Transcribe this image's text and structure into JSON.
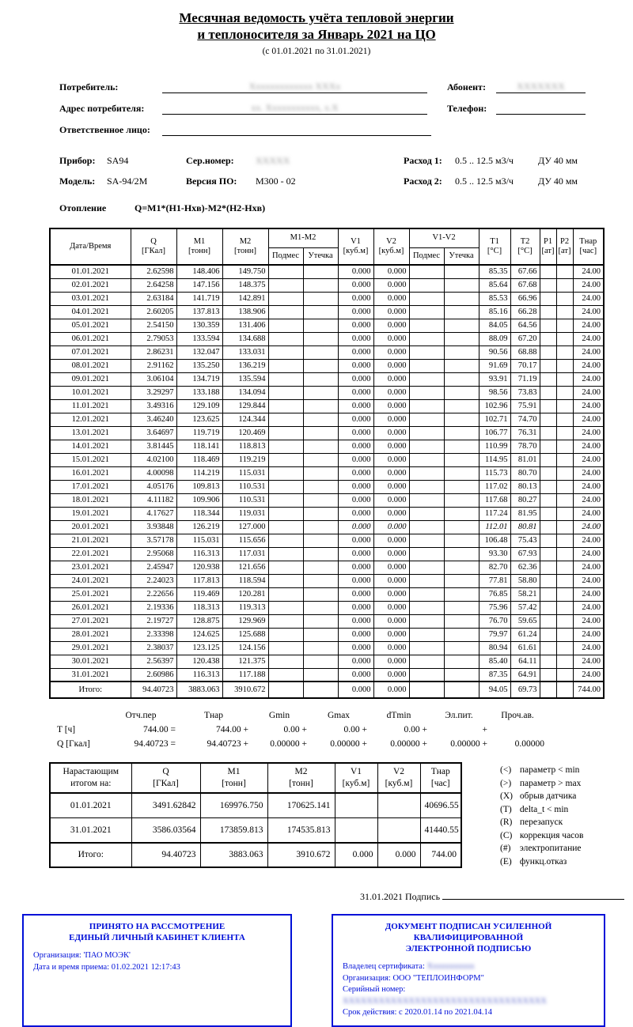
{
  "title": {
    "line1": "Месячная ведомость учёта тепловой энергии",
    "line2": "и теплоносителя за Январь 2021 на ЦО",
    "period": "(с 01.01.2021 по 31.01.2021)"
  },
  "consumer_form": {
    "consumer_label": "Потребитель:",
    "consumer_value_redacted": "Xxxxxxxxxxxxx XXXx",
    "abonent_label": "Абонент:",
    "abonent_value_redacted": "XXXXXXX",
    "address_label": "Адрес потребителя:",
    "address_value_redacted": "xx. Xxxxxxxxxxx, x.X",
    "phone_label": "Телефон:",
    "phone_value": "",
    "responsible_label": "Ответственное лицо:",
    "responsible_value": ""
  },
  "device": {
    "device_label": "Прибор:",
    "device_value": "SA94",
    "serial_label": "Сер.номер:",
    "serial_value_redacted": "XXXXX",
    "model_label": "Модель:",
    "model_value": "SA-94/2M",
    "firmware_label": "Версия ПО:",
    "firmware_value": "M300 - 02",
    "flow1_label": "Расход 1:",
    "flow1_value": "0.5 .. 12.5 м3/ч",
    "flow1_du": "ДУ 40 мм",
    "flow2_label": "Расход 2:",
    "flow2_value": "0.5 .. 12.5 м3/ч",
    "flow2_du": "ДУ 40 мм",
    "system_label": "Отопление",
    "formula": "Q=M1*(H1-Hхв)-M2*(H2-Hхв)"
  },
  "main_table": {
    "headers": {
      "date": "Дата/Время",
      "q": [
        "Q",
        "[ГКал]"
      ],
      "m1": [
        "M1",
        "[тонн]"
      ],
      "m2": [
        "M2",
        "[тонн]"
      ],
      "m1m2": "M1-M2",
      "v1": [
        "V1",
        "[куб.м]"
      ],
      "v2": [
        "V2",
        "[куб.м]"
      ],
      "v1v2": "V1-V2",
      "t1": [
        "T1",
        "[°C]"
      ],
      "t2": [
        "T2",
        "[°C]"
      ],
      "p1": [
        "P1",
        "[ат]"
      ],
      "p2": [
        "P2",
        "[ат]"
      ],
      "tnar": [
        "Тнар",
        "[час]"
      ],
      "podmes": "Подмес",
      "utechka": "Утечка"
    },
    "rows": [
      {
        "date": "01.01.2021",
        "q": "2.62598",
        "m1": "148.406",
        "m2": "149.750",
        "v1": "0.000",
        "v2": "0.000",
        "t1": "85.35",
        "t2": "67.66",
        "tnar": "24.00",
        "italic": false
      },
      {
        "date": "02.01.2021",
        "q": "2.64258",
        "m1": "147.156",
        "m2": "148.375",
        "v1": "0.000",
        "v2": "0.000",
        "t1": "85.64",
        "t2": "67.68",
        "tnar": "24.00",
        "italic": false
      },
      {
        "date": "03.01.2021",
        "q": "2.63184",
        "m1": "141.719",
        "m2": "142.891",
        "v1": "0.000",
        "v2": "0.000",
        "t1": "85.53",
        "t2": "66.96",
        "tnar": "24.00",
        "italic": false
      },
      {
        "date": "04.01.2021",
        "q": "2.60205",
        "m1": "137.813",
        "m2": "138.906",
        "v1": "0.000",
        "v2": "0.000",
        "t1": "85.16",
        "t2": "66.28",
        "tnar": "24.00",
        "italic": false
      },
      {
        "date": "05.01.2021",
        "q": "2.54150",
        "m1": "130.359",
        "m2": "131.406",
        "v1": "0.000",
        "v2": "0.000",
        "t1": "84.05",
        "t2": "64.56",
        "tnar": "24.00",
        "italic": false
      },
      {
        "date": "06.01.2021",
        "q": "2.79053",
        "m1": "133.594",
        "m2": "134.688",
        "v1": "0.000",
        "v2": "0.000",
        "t1": "88.09",
        "t2": "67.20",
        "tnar": "24.00",
        "italic": false
      },
      {
        "date": "07.01.2021",
        "q": "2.86231",
        "m1": "132.047",
        "m2": "133.031",
        "v1": "0.000",
        "v2": "0.000",
        "t1": "90.56",
        "t2": "68.88",
        "tnar": "24.00",
        "italic": false
      },
      {
        "date": "08.01.2021",
        "q": "2.91162",
        "m1": "135.250",
        "m2": "136.219",
        "v1": "0.000",
        "v2": "0.000",
        "t1": "91.69",
        "t2": "70.17",
        "tnar": "24.00",
        "italic": false
      },
      {
        "date": "09.01.2021",
        "q": "3.06104",
        "m1": "134.719",
        "m2": "135.594",
        "v1": "0.000",
        "v2": "0.000",
        "t1": "93.91",
        "t2": "71.19",
        "tnar": "24.00",
        "italic": false
      },
      {
        "date": "10.01.2021",
        "q": "3.29297",
        "m1": "133.188",
        "m2": "134.094",
        "v1": "0.000",
        "v2": "0.000",
        "t1": "98.56",
        "t2": "73.83",
        "tnar": "24.00",
        "italic": false
      },
      {
        "date": "11.01.2021",
        "q": "3.49316",
        "m1": "129.109",
        "m2": "129.844",
        "v1": "0.000",
        "v2": "0.000",
        "t1": "102.96",
        "t2": "75.91",
        "tnar": "24.00",
        "italic": false
      },
      {
        "date": "12.01.2021",
        "q": "3.46240",
        "m1": "123.625",
        "m2": "124.344",
        "v1": "0.000",
        "v2": "0.000",
        "t1": "102.71",
        "t2": "74.70",
        "tnar": "24.00",
        "italic": false
      },
      {
        "date": "13.01.2021",
        "q": "3.64697",
        "m1": "119.719",
        "m2": "120.469",
        "v1": "0.000",
        "v2": "0.000",
        "t1": "106.77",
        "t2": "76.31",
        "tnar": "24.00",
        "italic": false
      },
      {
        "date": "14.01.2021",
        "q": "3.81445",
        "m1": "118.141",
        "m2": "118.813",
        "v1": "0.000",
        "v2": "0.000",
        "t1": "110.99",
        "t2": "78.70",
        "tnar": "24.00",
        "italic": false
      },
      {
        "date": "15.01.2021",
        "q": "4.02100",
        "m1": "118.469",
        "m2": "119.219",
        "v1": "0.000",
        "v2": "0.000",
        "t1": "114.95",
        "t2": "81.01",
        "tnar": "24.00",
        "italic": false
      },
      {
        "date": "16.01.2021",
        "q": "4.00098",
        "m1": "114.219",
        "m2": "115.031",
        "v1": "0.000",
        "v2": "0.000",
        "t1": "115.73",
        "t2": "80.70",
        "tnar": "24.00",
        "italic": false
      },
      {
        "date": "17.01.2021",
        "q": "4.05176",
        "m1": "109.813",
        "m2": "110.531",
        "v1": "0.000",
        "v2": "0.000",
        "t1": "117.02",
        "t2": "80.13",
        "tnar": "24.00",
        "italic": false
      },
      {
        "date": "18.01.2021",
        "q": "4.11182",
        "m1": "109.906",
        "m2": "110.531",
        "v1": "0.000",
        "v2": "0.000",
        "t1": "117.68",
        "t2": "80.27",
        "tnar": "24.00",
        "italic": false
      },
      {
        "date": "19.01.2021",
        "q": "4.17627",
        "m1": "118.344",
        "m2": "119.031",
        "v1": "0.000",
        "v2": "0.000",
        "t1": "117.24",
        "t2": "81.95",
        "tnar": "24.00",
        "italic": false
      },
      {
        "date": "20.01.2021",
        "q": "3.93848",
        "m1": "126.219",
        "m2": "127.000",
        "v1": "0.000",
        "v2": "0.000",
        "t1": "112.01",
        "t2": "80.81",
        "tnar": "24.00",
        "italic": true
      },
      {
        "date": "21.01.2021",
        "q": "3.57178",
        "m1": "115.031",
        "m2": "115.656",
        "v1": "0.000",
        "v2": "0.000",
        "t1": "106.48",
        "t2": "75.43",
        "tnar": "24.00",
        "italic": false
      },
      {
        "date": "22.01.2021",
        "q": "2.95068",
        "m1": "116.313",
        "m2": "117.031",
        "v1": "0.000",
        "v2": "0.000",
        "t1": "93.30",
        "t2": "67.93",
        "tnar": "24.00",
        "italic": false
      },
      {
        "date": "23.01.2021",
        "q": "2.45947",
        "m1": "120.938",
        "m2": "121.656",
        "v1": "0.000",
        "v2": "0.000",
        "t1": "82.70",
        "t2": "62.36",
        "tnar": "24.00",
        "italic": false
      },
      {
        "date": "24.01.2021",
        "q": "2.24023",
        "m1": "117.813",
        "m2": "118.594",
        "v1": "0.000",
        "v2": "0.000",
        "t1": "77.81",
        "t2": "58.80",
        "tnar": "24.00",
        "italic": false
      },
      {
        "date": "25.01.2021",
        "q": "2.22656",
        "m1": "119.469",
        "m2": "120.281",
        "v1": "0.000",
        "v2": "0.000",
        "t1": "76.85",
        "t2": "58.21",
        "tnar": "24.00",
        "italic": false
      },
      {
        "date": "26.01.2021",
        "q": "2.19336",
        "m1": "118.313",
        "m2": "119.313",
        "v1": "0.000",
        "v2": "0.000",
        "t1": "75.96",
        "t2": "57.42",
        "tnar": "24.00",
        "italic": false
      },
      {
        "date": "27.01.2021",
        "q": "2.19727",
        "m1": "128.875",
        "m2": "129.969",
        "v1": "0.000",
        "v2": "0.000",
        "t1": "76.70",
        "t2": "59.65",
        "tnar": "24.00",
        "italic": false
      },
      {
        "date": "28.01.2021",
        "q": "2.33398",
        "m1": "124.625",
        "m2": "125.688",
        "v1": "0.000",
        "v2": "0.000",
        "t1": "79.97",
        "t2": "61.24",
        "tnar": "24.00",
        "italic": false
      },
      {
        "date": "29.01.2021",
        "q": "2.38037",
        "m1": "123.125",
        "m2": "124.156",
        "v1": "0.000",
        "v2": "0.000",
        "t1": "80.94",
        "t2": "61.61",
        "tnar": "24.00",
        "italic": false
      },
      {
        "date": "30.01.2021",
        "q": "2.56397",
        "m1": "120.438",
        "m2": "121.375",
        "v1": "0.000",
        "v2": "0.000",
        "t1": "85.40",
        "t2": "64.11",
        "tnar": "24.00",
        "italic": false
      },
      {
        "date": "31.01.2021",
        "q": "2.60986",
        "m1": "116.313",
        "m2": "117.188",
        "v1": "0.000",
        "v2": "0.000",
        "t1": "87.35",
        "t2": "64.91",
        "tnar": "24.00",
        "italic": false
      }
    ],
    "totals": {
      "label": "Итого:",
      "q": "94.40723",
      "m1": "3883.063",
      "m2": "3910.672",
      "v1": "0.000",
      "v2": "0.000",
      "t1": "94.05",
      "t2": "69.73",
      "tnar": "744.00"
    }
  },
  "summary": {
    "headers": [
      "Отч.пер",
      "Тнар",
      "Gmin",
      "Gmax",
      "dTmin",
      "Эл.пит.",
      "Проч.ав."
    ],
    "t_label": "T [ч]",
    "t_values": [
      "744.00 =",
      "744.00 +",
      "0.00 +",
      "0.00 +",
      "0.00 +",
      "+",
      ""
    ],
    "q_label": "Q [Гкал]",
    "q_values": [
      "94.40723 =",
      "94.40723 +",
      "0.00000 +",
      "0.00000 +",
      "0.00000 +",
      "0.00000 +",
      "0.00000"
    ]
  },
  "cumulative_table": {
    "corner": [
      "Нарастающим",
      "итогом на:"
    ],
    "cols": [
      [
        "Q",
        "[ГКал]"
      ],
      [
        "M1",
        "[тонн]"
      ],
      [
        "M2",
        "[тонн]"
      ],
      [
        "V1",
        "[куб.м]"
      ],
      [
        "V2",
        "[куб.м]"
      ],
      [
        "Тнар",
        "[час]"
      ]
    ],
    "rows": [
      [
        "01.01.2021",
        "3491.62842",
        "169976.750",
        "170625.141",
        "",
        "",
        "40696.55"
      ],
      [
        "31.01.2021",
        "3586.03564",
        "173859.813",
        "174535.813",
        "",
        "",
        "41440.55"
      ],
      [
        "Итого:",
        "94.40723",
        "3883.063",
        "3910.672",
        "0.000",
        "0.000",
        "744.00"
      ]
    ]
  },
  "legend": [
    {
      "code": "(<)",
      "text": "параметр < min"
    },
    {
      "code": "(>)",
      "text": "параметр > max"
    },
    {
      "code": "(X)",
      "text": "обрыв датчика"
    },
    {
      "code": "(T)",
      "text": "delta_t < min"
    },
    {
      "code": "(R)",
      "text": "перезапуск"
    },
    {
      "code": "(C)",
      "text": "коррекция часов"
    },
    {
      "code": "(#)",
      "text": "электропитание"
    },
    {
      "code": "(E)",
      "text": "функц.отказ"
    }
  ],
  "signature": {
    "date": "31.01.2021",
    "label": "Подпись"
  },
  "acceptance_box": {
    "title1": "ПРИНЯТО НА РАССМОТРЕНИЕ",
    "title2": "ЕДИНЫЙ ЛИЧНЫЙ КАБИНЕТ КЛИЕНТА",
    "org_line": "Организация: 'ПАО МОЭК'",
    "datetime_line": "Дата и время приема: 01.02.2021 12:17:43"
  },
  "signature_box": {
    "title1": "ДОКУМЕНТ ПОДПИСАН УСИЛЕННОЙ КВАЛИФИЦИРОВАННОЙ",
    "title2": "ЭЛЕКТРОННОЙ ПОДПИСЬЮ",
    "owner_label": "Владелец сертификата:",
    "owner_value_redacted": "Xxxxxxxxxxx",
    "org_line": "Организация: ООО \"ТЕПЛОИНФОРМ\"",
    "serial_label": "Серийный номер:",
    "serial_value_redacted": "XXXXXXXXXXXXXXXXXXXXXXXXXXXXXXXXXX",
    "validity_line": "Срок действия: с 2020.01.14 по 2021.04.14"
  }
}
